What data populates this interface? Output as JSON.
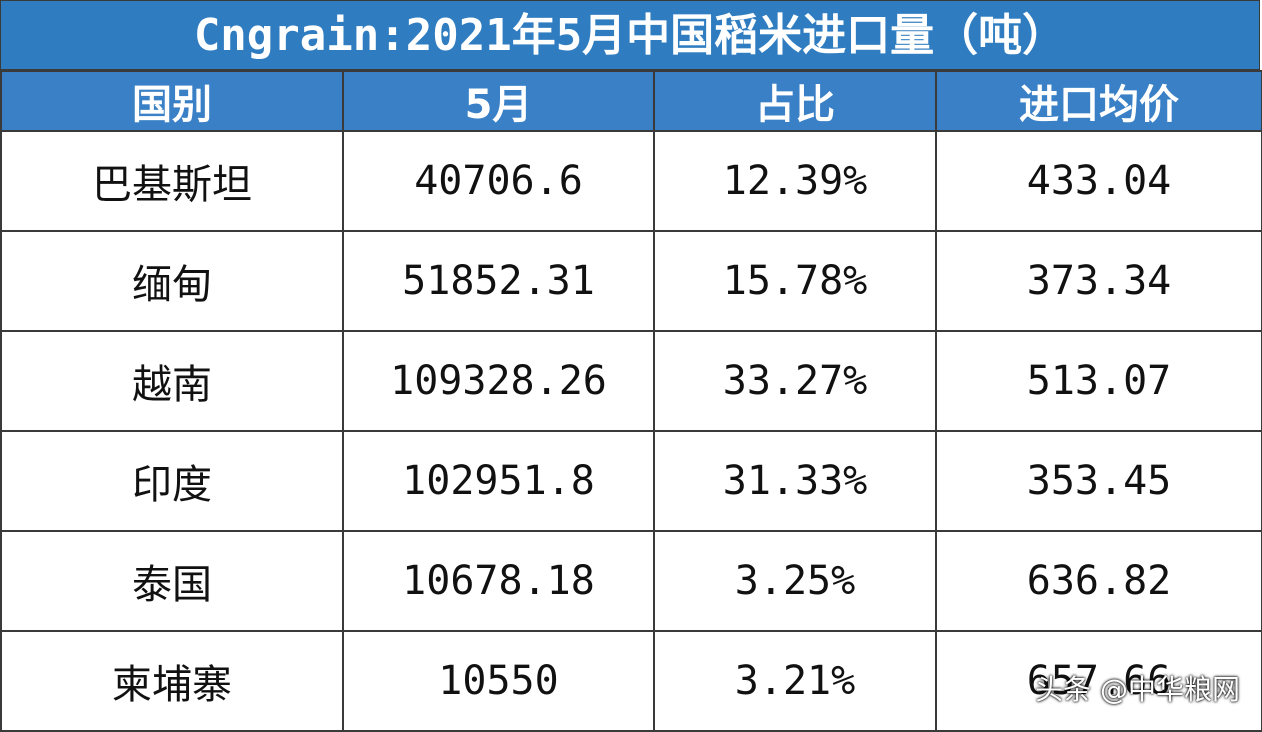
{
  "header": {
    "title": "Cngrain:2021年5月中国稻米进口量（吨）"
  },
  "table": {
    "columns": [
      "国别",
      "5月",
      "占比",
      "进口均价"
    ],
    "rows": [
      [
        "巴基斯坦",
        "40706.6",
        "12.39%",
        "433.04"
      ],
      [
        "缅甸",
        "51852.31",
        "15.78%",
        "373.34"
      ],
      [
        "越南",
        "109328.26",
        "33.27%",
        "513.07"
      ],
      [
        "印度",
        "102951.8",
        "31.33%",
        "353.45"
      ],
      [
        "泰国",
        "10678.18",
        "3.25%",
        "636.82"
      ],
      [
        "柬埔寨",
        "10550",
        "3.21%",
        "657.66"
      ]
    ]
  },
  "watermark": "头条 @中华粮网"
}
